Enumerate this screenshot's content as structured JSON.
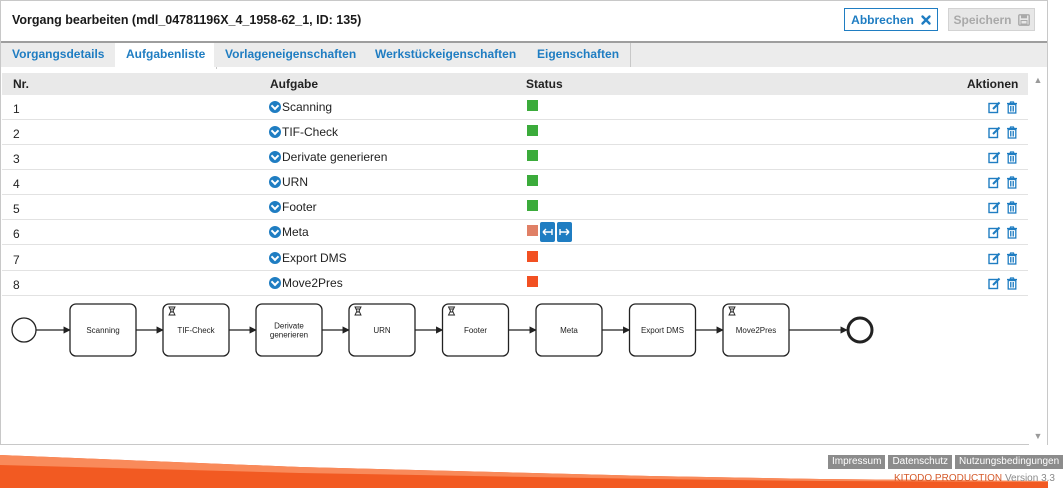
{
  "window": {
    "title": "Vorgang bearbeiten (mdl_04781196X_4_1958-62_1, ID: 135)",
    "cancel_label": "Abbrechen",
    "save_label": "Speichern"
  },
  "tabs": [
    {
      "label": "Vorgangsdetails",
      "active": false
    },
    {
      "label": "Aufgabenliste",
      "active": true
    },
    {
      "label": "Vorlageneigenschaften",
      "active": false
    },
    {
      "label": "Werkstückeigenschaften",
      "active": false
    },
    {
      "label": "Eigenschaften",
      "active": false
    }
  ],
  "table": {
    "headers": {
      "nr": "Nr.",
      "task": "Aufgabe",
      "status": "Status",
      "actions": "Aktionen"
    },
    "rows": [
      {
        "nr": "1",
        "task": "Scanning",
        "status_color": "#3bab3b"
      },
      {
        "nr": "2",
        "task": "TIF-Check",
        "status_color": "#3bab3b"
      },
      {
        "nr": "3",
        "task": "Derivate generieren",
        "status_color": "#3bab3b"
      },
      {
        "nr": "4",
        "task": "URN",
        "status_color": "#3bab3b"
      },
      {
        "nr": "5",
        "task": "Footer",
        "status_color": "#3bab3b"
      },
      {
        "nr": "6",
        "task": "Meta",
        "status_color": "#e08066"
      },
      {
        "nr": "7",
        "task": "Export DMS",
        "status_color": "#f25022"
      },
      {
        "nr": "8",
        "task": "Move2Pres",
        "status_color": "#f25022"
      }
    ]
  },
  "diagram": {
    "tasks": [
      {
        "label": "Scanning",
        "script": false
      },
      {
        "label": "TIF-Check",
        "script": true
      },
      {
        "label": "Derivate generieren",
        "script": false
      },
      {
        "label": "URN",
        "script": true
      },
      {
        "label": "Footer",
        "script": true
      },
      {
        "label": "Meta",
        "script": false
      },
      {
        "label": "Export DMS",
        "script": false
      },
      {
        "label": "Move2Pres",
        "script": true
      }
    ]
  },
  "footer": {
    "links": [
      "Impressum",
      "Datenschutz",
      "Nutzungsbedingungen"
    ],
    "brand": "KITODO.PRODUCTION",
    "version": "Version 3.3"
  },
  "colors": {
    "accent": "#1f7dc2",
    "footer_orange": "#f25a22",
    "done": "#3bab3b",
    "open": "#f25022",
    "in_work": "#e08066"
  }
}
